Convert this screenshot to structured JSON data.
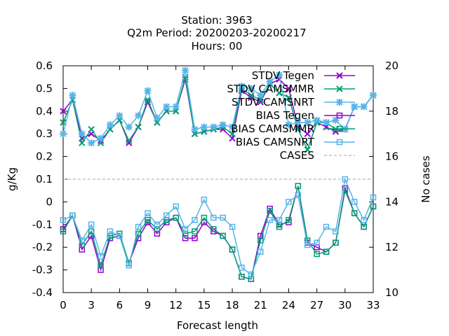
{
  "chart_data": {
    "type": "line",
    "title_lines": [
      "Station:      3963",
      "Q2m   Period: 20200203-20200217",
      "Hours:  00"
    ],
    "xlabel": "Forecast length",
    "ylabel": "g/Kg",
    "y2label": "No cases",
    "xlim": [
      0,
      33
    ],
    "ylim": [
      -0.4,
      0.6
    ],
    "y2lim": [
      10,
      20
    ],
    "xticks": [
      0,
      3,
      6,
      9,
      12,
      15,
      18,
      21,
      24,
      27,
      30,
      33
    ],
    "yticks": [
      -0.4,
      -0.3,
      -0.2,
      -0.1,
      0,
      0.1,
      0.2,
      0.3,
      0.4,
      0.5,
      0.6
    ],
    "ytick_labels": [
      "-0.4",
      "-0.3",
      "-0.2",
      "-0.1",
      "0",
      "0.1",
      "0.2",
      "0.3",
      "0.4",
      "0.5",
      "0.6"
    ],
    "y2ticks": [
      10,
      12,
      14,
      16,
      18,
      20
    ],
    "grid": false,
    "legend_position": "top-right",
    "x": [
      0,
      1,
      2,
      3,
      4,
      5,
      6,
      7,
      8,
      9,
      10,
      11,
      12,
      13,
      14,
      15,
      16,
      17,
      18,
      19,
      20,
      21,
      22,
      23,
      24,
      25,
      26,
      27,
      28,
      29,
      30,
      31,
      32,
      33
    ],
    "series": [
      {
        "name": "STDV Tegen",
        "color": "#9400d3",
        "marker": "x",
        "axis": "y1",
        "values": [
          0.4,
          0.45,
          0.28,
          0.3,
          0.27,
          0.32,
          0.36,
          0.26,
          0.33,
          0.44,
          0.35,
          0.4,
          0.4,
          0.54,
          0.3,
          0.31,
          0.32,
          0.32,
          0.28,
          0.49,
          0.46,
          0.44,
          0.52,
          0.54,
          0.5,
          0.33,
          0.3,
          0.35,
          0.33,
          0.31,
          0.32,
          0.42,
          0.42,
          0.47
        ]
      },
      {
        "name": "STDV CAMSMMR",
        "color": "#009e73",
        "marker": "x",
        "axis": "y1",
        "values": [
          0.35,
          0.45,
          0.26,
          0.32,
          0.26,
          0.32,
          0.36,
          0.27,
          0.33,
          0.45,
          0.35,
          0.4,
          0.4,
          0.55,
          0.3,
          0.31,
          0.32,
          0.33,
          0.3,
          0.5,
          0.47,
          0.45,
          0.52,
          0.48,
          0.46,
          0.32,
          0.23,
          0.35,
          0.35,
          0.32,
          0.32,
          0.42,
          0.42,
          0.47
        ]
      },
      {
        "name": "STDV CAMSNRT",
        "color": "#56b4e9",
        "marker": "star",
        "axis": "y1",
        "values": [
          0.3,
          0.47,
          0.3,
          0.26,
          0.28,
          0.34,
          0.38,
          0.33,
          0.38,
          0.49,
          0.37,
          0.42,
          0.42,
          0.58,
          0.32,
          0.33,
          0.33,
          0.34,
          0.33,
          0.51,
          0.5,
          0.47,
          0.53,
          0.56,
          0.34,
          0.35,
          0.35,
          0.36,
          0.35,
          0.36,
          0.32,
          0.42,
          0.42,
          0.47
        ]
      },
      {
        "name": "BIAS Tegen",
        "color": "#9400d3",
        "marker": "square",
        "axis": "y1",
        "values": [
          -0.12,
          -0.06,
          -0.21,
          -0.15,
          -0.3,
          -0.16,
          -0.15,
          -0.27,
          -0.16,
          -0.09,
          -0.14,
          -0.09,
          -0.07,
          -0.16,
          -0.16,
          -0.09,
          -0.13,
          -0.15,
          -0.21,
          -0.33,
          -0.34,
          -0.15,
          -0.03,
          -0.1,
          -0.09,
          0.07,
          -0.18,
          -0.2,
          -0.22,
          -0.18,
          0.06,
          -0.05,
          -0.11,
          -0.02
        ]
      },
      {
        "name": "BIAS CAMSMMR",
        "color": "#009e73",
        "marker": "square",
        "axis": "y1",
        "values": [
          -0.13,
          -0.06,
          -0.19,
          -0.13,
          -0.28,
          -0.15,
          -0.14,
          -0.27,
          -0.14,
          -0.08,
          -0.12,
          -0.08,
          -0.07,
          -0.14,
          -0.13,
          -0.07,
          -0.12,
          -0.15,
          -0.21,
          -0.33,
          -0.34,
          -0.17,
          -0.04,
          -0.11,
          -0.08,
          0.07,
          -0.17,
          -0.23,
          -0.22,
          -0.18,
          0.05,
          -0.05,
          -0.11,
          -0.02
        ]
      },
      {
        "name": "BIAS CAMSNRT",
        "color": "#56b4e9",
        "marker": "square",
        "axis": "y1",
        "values": [
          -0.08,
          -0.06,
          -0.17,
          -0.1,
          -0.24,
          -0.13,
          -0.15,
          -0.28,
          -0.11,
          -0.05,
          -0.1,
          -0.06,
          -0.02,
          -0.12,
          -0.08,
          0.01,
          -0.07,
          -0.07,
          -0.11,
          -0.29,
          -0.32,
          -0.22,
          -0.08,
          -0.08,
          0.0,
          0.03,
          -0.19,
          -0.18,
          -0.11,
          -0.13,
          0.1,
          0.0,
          -0.08,
          0.02
        ]
      },
      {
        "name": "CASES",
        "color": "#a0a0a0",
        "marker": "none",
        "dash": true,
        "axis": "y2",
        "values": [
          15,
          15,
          15,
          15,
          15,
          15,
          15,
          15,
          15,
          15,
          15,
          15,
          15,
          15,
          15,
          15,
          15,
          15,
          15,
          15,
          15,
          15,
          15,
          15,
          15,
          15,
          15,
          15,
          15,
          15,
          15,
          15,
          15,
          15
        ]
      }
    ]
  }
}
